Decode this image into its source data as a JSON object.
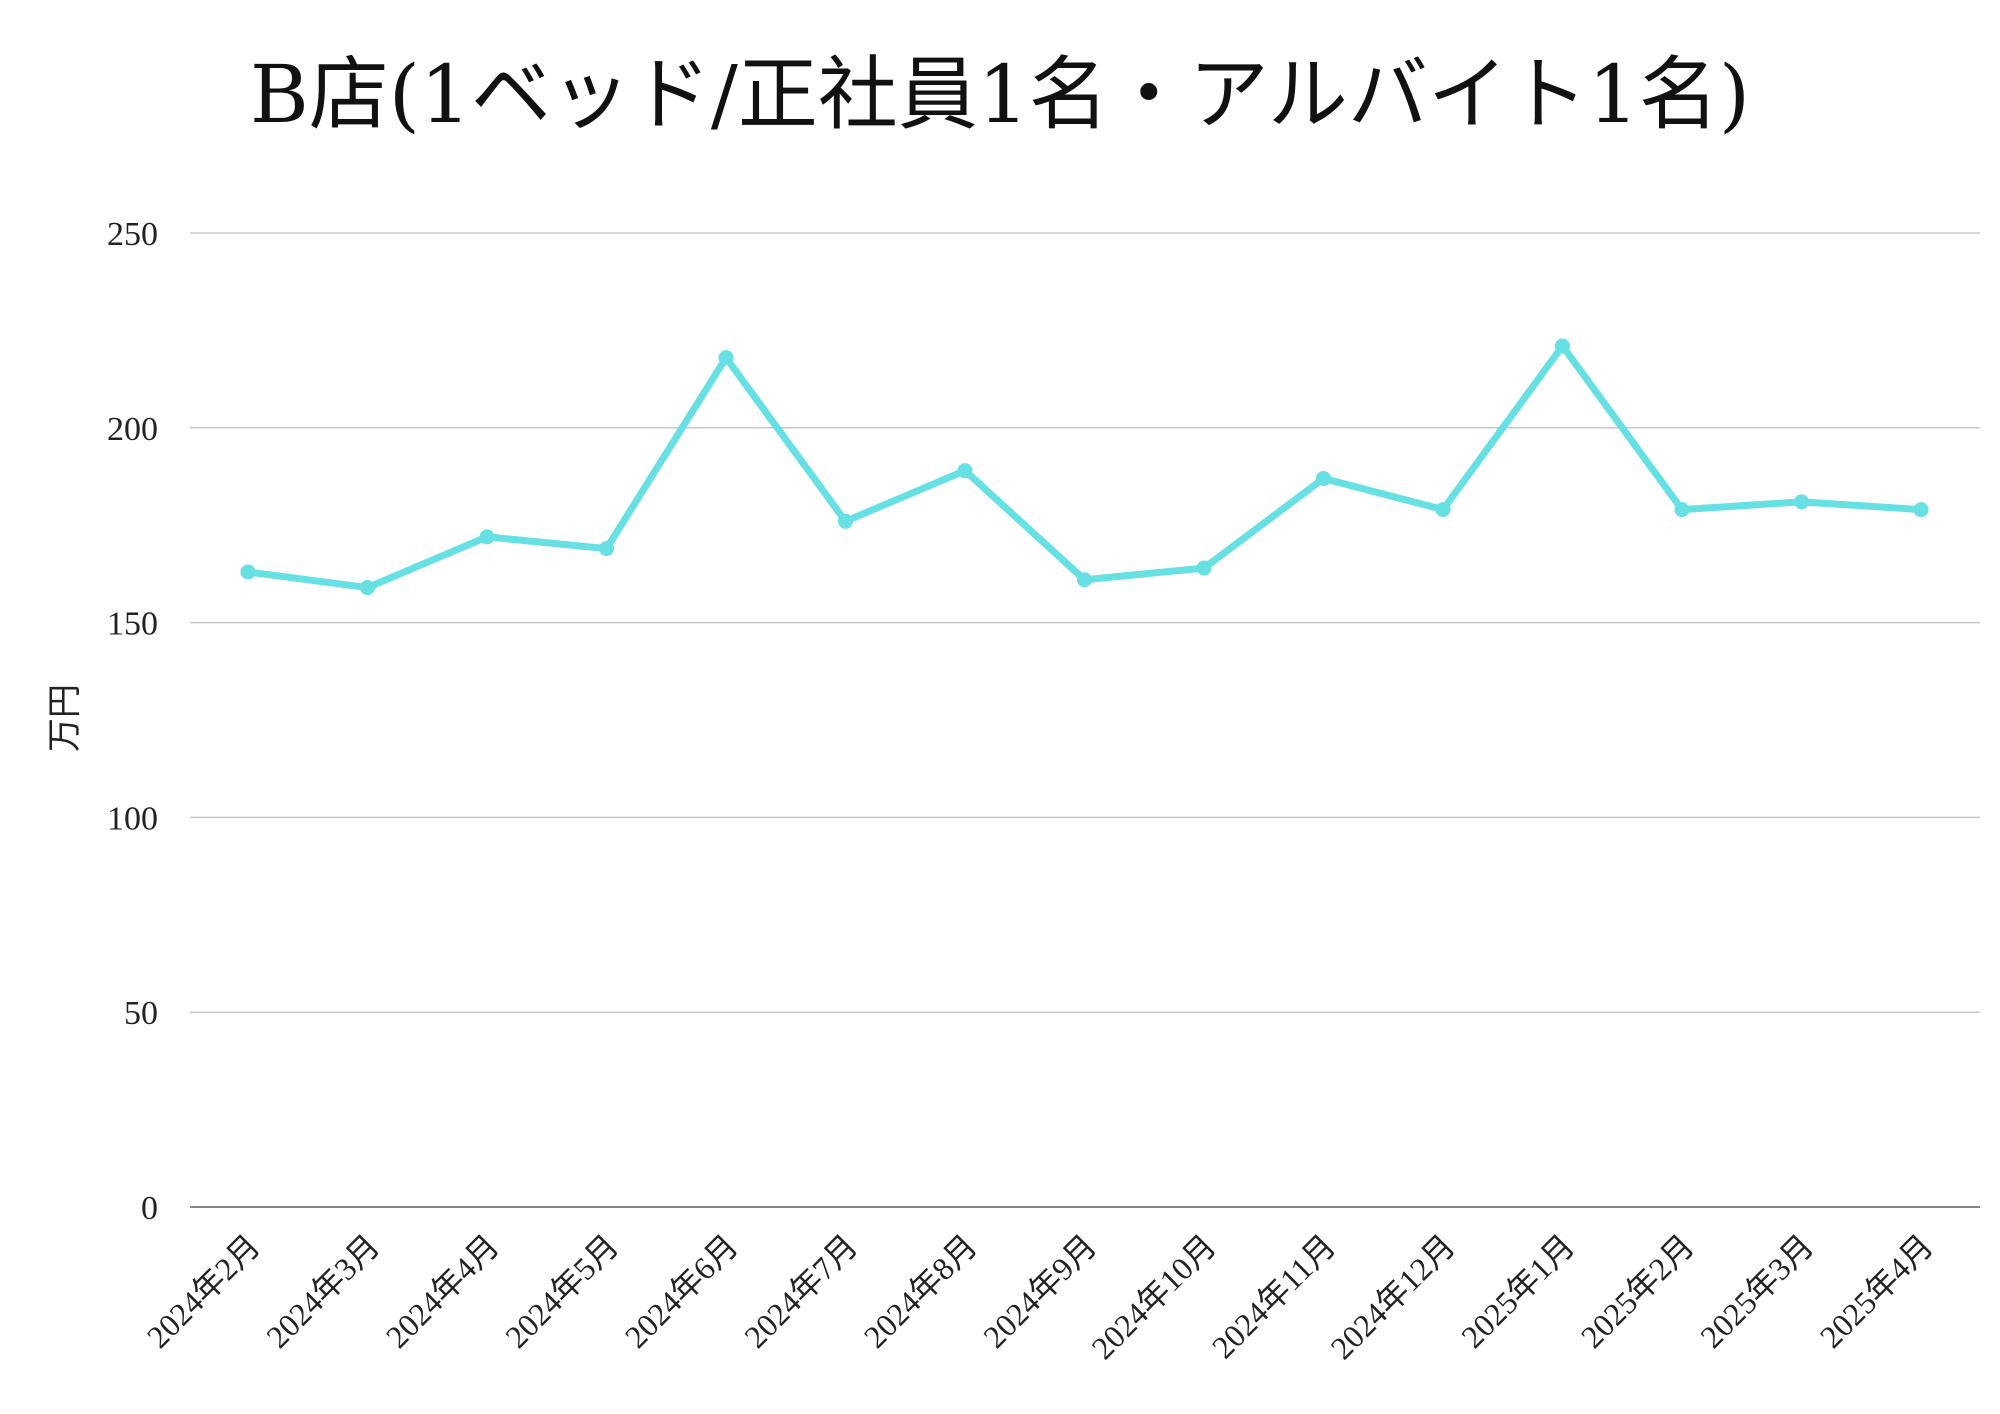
{
  "chart_data": {
    "type": "line",
    "title": "B店(1ベッド/正社員1名・アルバイト1名)",
    "xlabel": "",
    "ylabel": "万円",
    "ylim": [
      0,
      250
    ],
    "yticks": [
      0,
      50,
      100,
      150,
      200,
      250
    ],
    "grid": true,
    "legend": "none",
    "categories": [
      "2024年2月",
      "2024年3月",
      "2024年4月",
      "2024年5月",
      "2024年6月",
      "2024年7月",
      "2024年8月",
      "2024年9月",
      "2024年10月",
      "2024年11月",
      "2024年12月",
      "2025年1月",
      "2025年2月",
      "2025年3月",
      "2025年4月"
    ],
    "series": [
      {
        "values": [
          163,
          159,
          172,
          169,
          218,
          176,
          189,
          161,
          164,
          187,
          179,
          221,
          179,
          181,
          179
        ],
        "color": "#66e0e3"
      }
    ]
  }
}
